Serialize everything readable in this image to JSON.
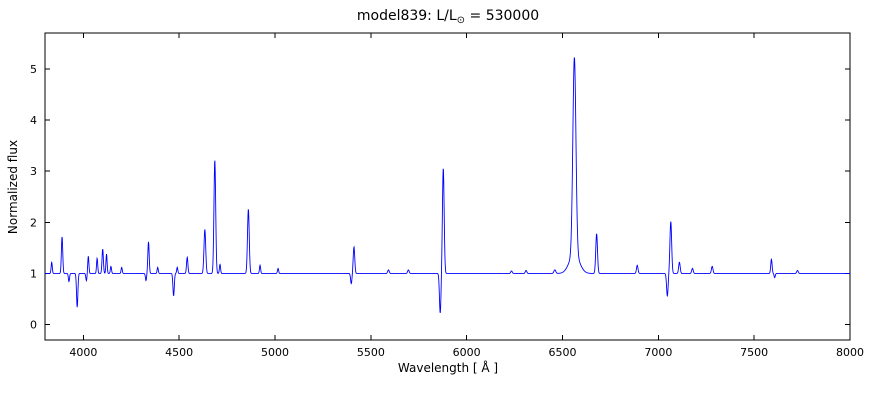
{
  "title": {
    "prefix": "model839: L/L",
    "sub": "⊙",
    "suffix": " = 530000"
  },
  "chart_data": {
    "type": "line",
    "title": "model839: L/L⊙ = 530000",
    "xlabel": "Wavelength [ Å ]",
    "ylabel": "Normalized flux",
    "xlim": [
      3800,
      8000
    ],
    "ylim": [
      -0.3,
      5.7
    ],
    "xticks": [
      4000,
      4500,
      5000,
      5500,
      6000,
      6500,
      7000,
      7500,
      8000
    ],
    "yticks": [
      0,
      1,
      2,
      3,
      4,
      5
    ],
    "grid": false,
    "legend": "none",
    "line_color": "#0000ff",
    "axis_color": "#000000",
    "baseline": 1.0,
    "features_note": "center = wavelength (Angstrom), peak = normalized flux at line center, width = gaussian sigma (Angstrom); peak < 1 means absorption dip",
    "features": [
      {
        "center": 3835,
        "peak": 1.22,
        "width": 3.0
      },
      {
        "center": 3889,
        "peak": 1.72,
        "width": 3.5
      },
      {
        "center": 3925,
        "peak": 0.84,
        "width": 3.0
      },
      {
        "center": 3968,
        "peak": 0.34,
        "width": 3.5
      },
      {
        "center": 4016,
        "peak": 0.86,
        "width": 3.0
      },
      {
        "center": 4026,
        "peak": 1.34,
        "width": 3.0
      },
      {
        "center": 4072,
        "peak": 1.3,
        "width": 3.0
      },
      {
        "center": 4101,
        "peak": 1.48,
        "width": 3.5
      },
      {
        "center": 4121,
        "peak": 1.38,
        "width": 3.0
      },
      {
        "center": 4144,
        "peak": 1.14,
        "width": 3.0
      },
      {
        "center": 4200,
        "peak": 1.12,
        "width": 3.0
      },
      {
        "center": 4327,
        "peak": 0.86,
        "width": 3.0
      },
      {
        "center": 4340,
        "peak": 1.62,
        "width": 3.5
      },
      {
        "center": 4388,
        "peak": 1.12,
        "width": 3.0
      },
      {
        "center": 4471,
        "peak": 0.56,
        "width": 3.5
      },
      {
        "center": 4490,
        "peak": 1.12,
        "width": 3.0
      },
      {
        "center": 4542,
        "peak": 1.32,
        "width": 3.5
      },
      {
        "center": 4634,
        "peak": 1.86,
        "width": 4.5
      },
      {
        "center": 4686,
        "peak": 3.22,
        "width": 4.5
      },
      {
        "center": 4713,
        "peak": 1.18,
        "width": 3.0
      },
      {
        "center": 4861,
        "peak": 2.26,
        "width": 4.5
      },
      {
        "center": 4922,
        "peak": 1.16,
        "width": 3.0
      },
      {
        "center": 5016,
        "peak": 1.1,
        "width": 3.0
      },
      {
        "center": 5398,
        "peak": 0.8,
        "width": 3.5
      },
      {
        "center": 5412,
        "peak": 1.52,
        "width": 4.0
      },
      {
        "center": 5592,
        "peak": 1.07,
        "width": 4.0
      },
      {
        "center": 5696,
        "peak": 1.07,
        "width": 4.0
      },
      {
        "center": 5862,
        "peak": 0.22,
        "width": 4.0
      },
      {
        "center": 5878,
        "peak": 3.06,
        "width": 4.5
      },
      {
        "center": 6234,
        "peak": 1.05,
        "width": 4.0
      },
      {
        "center": 6310,
        "peak": 1.06,
        "width": 4.0
      },
      {
        "center": 6460,
        "peak": 1.07,
        "width": 5.0
      },
      {
        "center": 6562,
        "peak": 4.85,
        "width": 8.0
      },
      {
        "center": 6562,
        "peak": 1.38,
        "width": 26.0
      },
      {
        "center": 6678,
        "peak": 1.78,
        "width": 4.5
      },
      {
        "center": 6890,
        "peak": 1.16,
        "width": 4.0
      },
      {
        "center": 7047,
        "peak": 0.56,
        "width": 4.0
      },
      {
        "center": 7065,
        "peak": 2.02,
        "width": 4.5
      },
      {
        "center": 7110,
        "peak": 1.22,
        "width": 4.0
      },
      {
        "center": 7178,
        "peak": 1.1,
        "width": 4.0
      },
      {
        "center": 7281,
        "peak": 1.14,
        "width": 4.0
      },
      {
        "center": 7590,
        "peak": 1.28,
        "width": 3.5
      },
      {
        "center": 7607,
        "peak": 0.92,
        "width": 3.0
      },
      {
        "center": 7726,
        "peak": 1.06,
        "width": 4.0
      }
    ]
  }
}
